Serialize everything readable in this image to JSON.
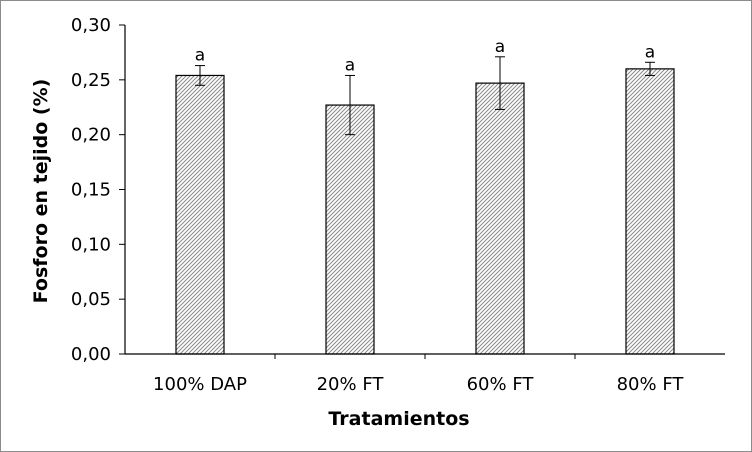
{
  "chart_data": {
    "type": "bar",
    "title": "",
    "xlabel": "Tratamientos",
    "ylabel": "Fosforo en tejido (%)",
    "categories": [
      "100% DAP",
      "20% FT",
      "60% FT",
      "80% FT"
    ],
    "values": [
      0.254,
      0.227,
      0.247,
      0.26
    ],
    "errors": [
      0.009,
      0.027,
      0.024,
      0.006
    ],
    "significance_labels": [
      "a",
      "a",
      "a",
      "a"
    ],
    "ylim": [
      0,
      0.3
    ],
    "yticks": [
      0,
      0.05,
      0.1,
      0.15,
      0.2,
      0.25,
      0.3
    ],
    "ytick_labels": [
      "0,00",
      "0,05",
      "0,10",
      "0,15",
      "0,20",
      "0,25",
      "0,30"
    ],
    "grid": false,
    "legend": "none",
    "bar_fill": "hatched",
    "colors": {
      "bar_edge": "#000000",
      "hatch": "#8a8a8a",
      "axis": "#000000"
    }
  }
}
